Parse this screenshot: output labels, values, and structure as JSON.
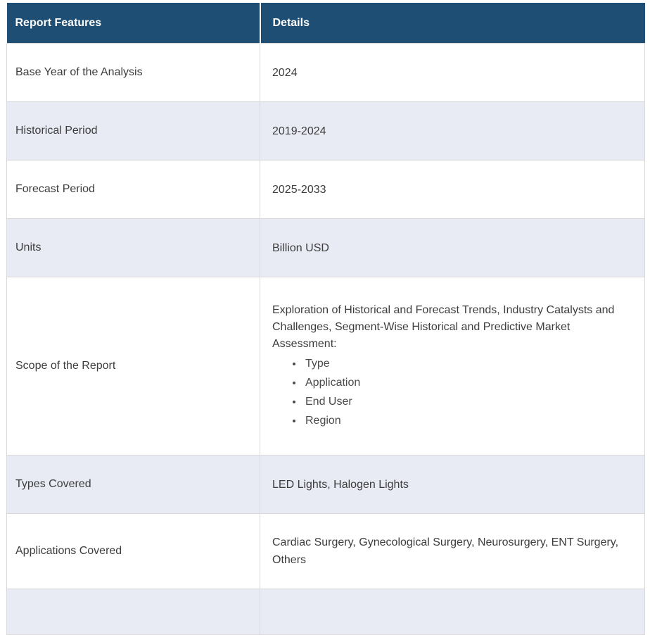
{
  "table": {
    "header": {
      "features_label": "Report Features",
      "details_label": "Details"
    },
    "rows": [
      {
        "label": "Base Year of the Analysis",
        "value": "2024"
      },
      {
        "label": "Historical Period",
        "value": "2019-2024"
      },
      {
        "label": "Forecast Period",
        "value": "2025-2033"
      },
      {
        "label": "Units",
        "value": "Billion USD"
      },
      {
        "label": "Scope of the Report",
        "value": "Exploration of Historical and Forecast Trends, Industry Catalysts and Challenges, Segment-Wise Historical and Predictive Market Assessment:",
        "bullets": [
          "Type",
          "Application",
          "End User",
          "Region"
        ]
      },
      {
        "label": "Types Covered",
        "value": "LED Lights, Halogen Lights"
      },
      {
        "label": "Applications Covered",
        "value": "Cardiac Surgery, Gynecological Surgery, Neurosurgery, ENT Surgery, Others"
      }
    ],
    "colors": {
      "header_bg": "#1F4E74",
      "header_text": "#FFFFFF",
      "row_bg": "#FFFFFF",
      "row_alt_bg": "#E8EAF4",
      "border": "#D9D9D9",
      "text": "#3D3D3D"
    }
  }
}
